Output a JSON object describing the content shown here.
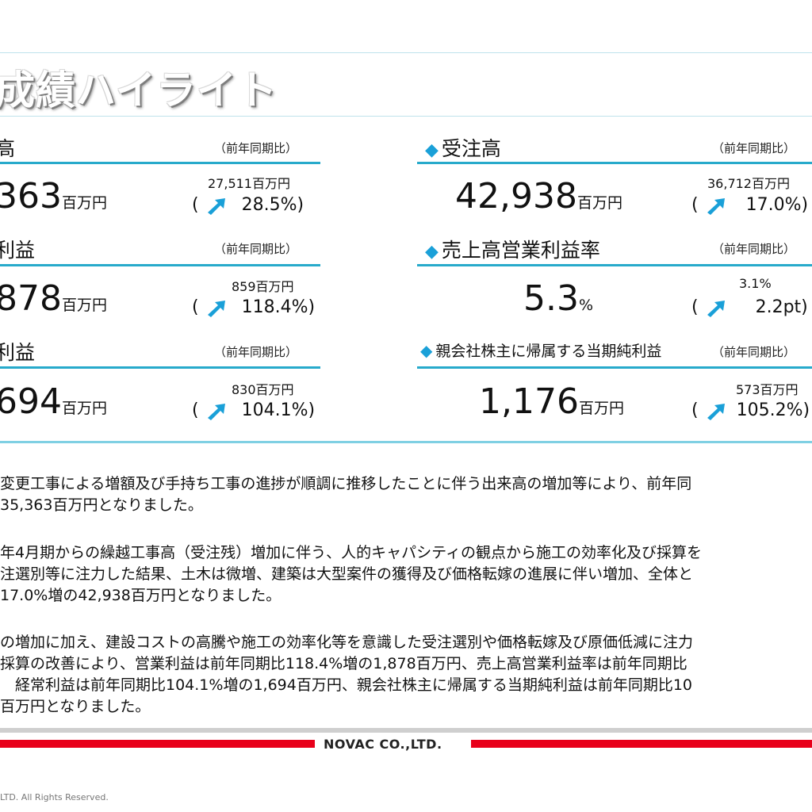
{
  "slide": {
    "title": "成績ハイライト"
  },
  "metrics": {
    "sales": {
      "label": "高",
      "yoy": "（前年同期比）",
      "value": "363",
      "unit": "百万円",
      "prev": "27,511百万円",
      "change": "28.5%)"
    },
    "op_profit": {
      "label": "利益",
      "yoy": "（前年同期比）",
      "value": "878",
      "unit": "百万円",
      "prev": "859百万円",
      "change": "118.4%)"
    },
    "ord_profit": {
      "label": "利益",
      "yoy": "（前年同期比）",
      "value": "694",
      "unit": "百万円",
      "prev": "830百万円",
      "change": "104.1%)"
    },
    "orders": {
      "label": "受注高",
      "yoy": "（前年同期比）",
      "value": "42,938",
      "unit": "百万円",
      "prev": "36,712百万円",
      "change": "17.0%)"
    },
    "margin": {
      "label": "売上高営業利益率",
      "yoy": "（前年同期比）",
      "value": "5.3",
      "unit": "%",
      "prev": "3.1%",
      "change": "2.2pt)"
    },
    "net_profit": {
      "label": "親会社株主に帰属する当期純利益",
      "yoy": "（前年同期比）",
      "value": "1,176",
      "unit": "百万円",
      "prev": "573百万円",
      "change": "105.2%)"
    }
  },
  "open_paren": "(",
  "paragraphs": {
    "p1_l1": "変更工事による増額及び手持ち工事の進捗が順調に推移したことに伴う出来高の増加等により、前年同",
    "p1_l2": "35,363百万円となりました。",
    "p2_l1": "年4月期からの繰越工事高（受注残）増加に伴う、人的キャパシティの観点から施工の効率化及び採算を",
    "p2_l2": "注選別等に注力した結果、土木は微増、建築は大型案件の獲得及び価格転嫁の進展に伴い増加、全体と",
    "p2_l3": "17.0%増の42,938百万円となりました。",
    "p3_l1": "の増加に加え、建設コストの高騰や施工の効率化等を意識した受注選別や価格転嫁及び原価低減に注力",
    "p3_l2": "採算の改善により、営業利益は前年同期比118.4%増の1,878百万円、売上高営業利益率は前年同期比",
    "p3_l3": "　経常利益は前年同期比104.1%増の1,694百万円、親会社株主に帰属する当期純利益は前年同期比10",
    "p3_l4": "百万円となりました。"
  },
  "footer": {
    "company": "NOVAC CO.,LTD.",
    "copyright": "LTD. All Rights Reserved."
  },
  "colors": {
    "accent": "#27aacb",
    "arrow": "#1aa0d8",
    "footer_red": "#e8001a"
  },
  "icons": {
    "diamond": "diamond-bullet-icon",
    "arrow": "up-right-arrow-icon"
  }
}
